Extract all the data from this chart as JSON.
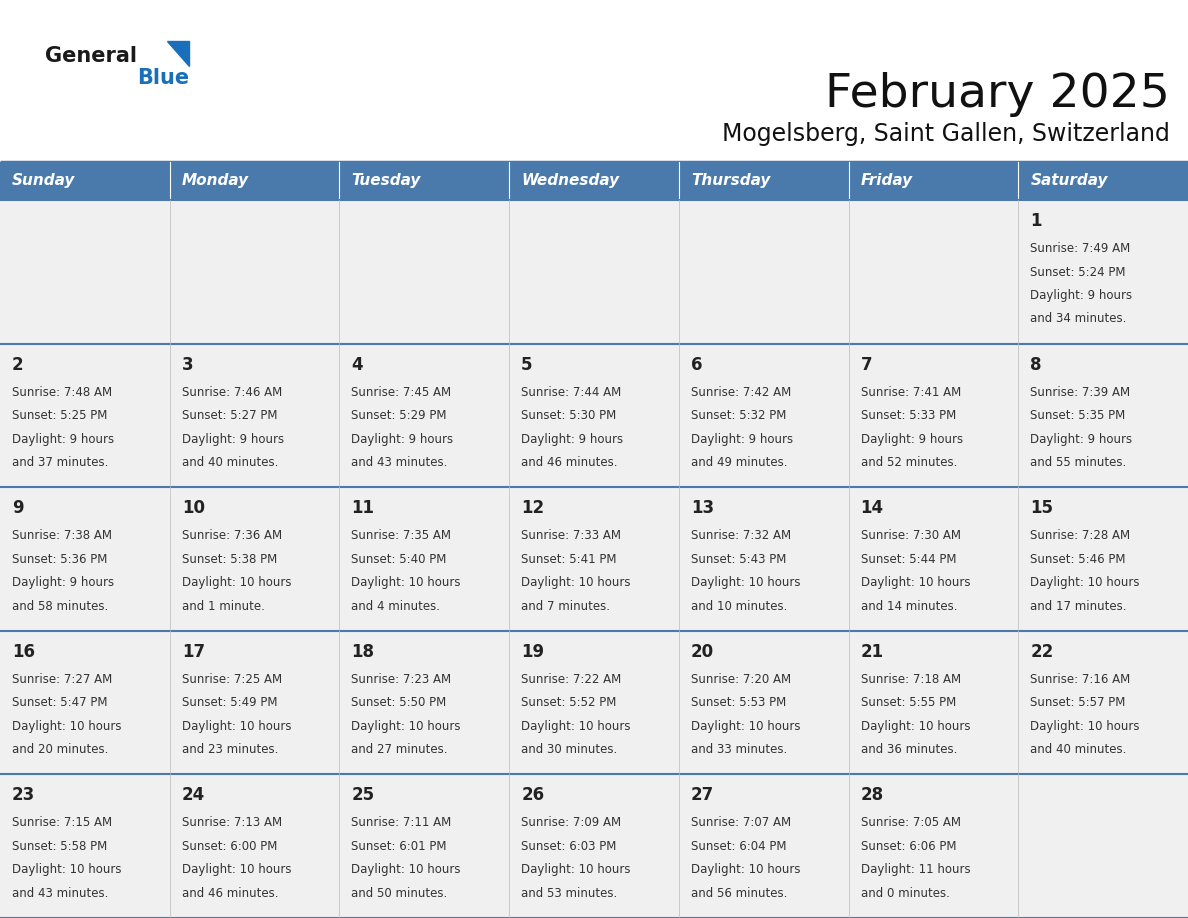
{
  "title": "February 2025",
  "subtitle": "Mogelsberg, Saint Gallen, Switzerland",
  "header_bg": "#4a7aac",
  "header_text": "#ffffff",
  "day_names": [
    "Sunday",
    "Monday",
    "Tuesday",
    "Wednesday",
    "Thursday",
    "Friday",
    "Saturday"
  ],
  "cell_bg": "#f0f0f0",
  "border_color": "#4a7aac",
  "day_num_color": "#222222",
  "info_color": "#333333",
  "logo_general_color": "#1a1a1a",
  "logo_blue_color": "#1a6fbc",
  "separator_color": "#4a7aac",
  "days": [
    {
      "day": 1,
      "col": 6,
      "row": 0,
      "sunrise": "7:49 AM",
      "sunset": "5:24 PM",
      "daylight_h": "9 hours",
      "daylight_m": "and 34 minutes."
    },
    {
      "day": 2,
      "col": 0,
      "row": 1,
      "sunrise": "7:48 AM",
      "sunset": "5:25 PM",
      "daylight_h": "9 hours",
      "daylight_m": "and 37 minutes."
    },
    {
      "day": 3,
      "col": 1,
      "row": 1,
      "sunrise": "7:46 AM",
      "sunset": "5:27 PM",
      "daylight_h": "9 hours",
      "daylight_m": "and 40 minutes."
    },
    {
      "day": 4,
      "col": 2,
      "row": 1,
      "sunrise": "7:45 AM",
      "sunset": "5:29 PM",
      "daylight_h": "9 hours",
      "daylight_m": "and 43 minutes."
    },
    {
      "day": 5,
      "col": 3,
      "row": 1,
      "sunrise": "7:44 AM",
      "sunset": "5:30 PM",
      "daylight_h": "9 hours",
      "daylight_m": "and 46 minutes."
    },
    {
      "day": 6,
      "col": 4,
      "row": 1,
      "sunrise": "7:42 AM",
      "sunset": "5:32 PM",
      "daylight_h": "9 hours",
      "daylight_m": "and 49 minutes."
    },
    {
      "day": 7,
      "col": 5,
      "row": 1,
      "sunrise": "7:41 AM",
      "sunset": "5:33 PM",
      "daylight_h": "9 hours",
      "daylight_m": "and 52 minutes."
    },
    {
      "day": 8,
      "col": 6,
      "row": 1,
      "sunrise": "7:39 AM",
      "sunset": "5:35 PM",
      "daylight_h": "9 hours",
      "daylight_m": "and 55 minutes."
    },
    {
      "day": 9,
      "col": 0,
      "row": 2,
      "sunrise": "7:38 AM",
      "sunset": "5:36 PM",
      "daylight_h": "9 hours",
      "daylight_m": "and 58 minutes."
    },
    {
      "day": 10,
      "col": 1,
      "row": 2,
      "sunrise": "7:36 AM",
      "sunset": "5:38 PM",
      "daylight_h": "10 hours",
      "daylight_m": "and 1 minute."
    },
    {
      "day": 11,
      "col": 2,
      "row": 2,
      "sunrise": "7:35 AM",
      "sunset": "5:40 PM",
      "daylight_h": "10 hours",
      "daylight_m": "and 4 minutes."
    },
    {
      "day": 12,
      "col": 3,
      "row": 2,
      "sunrise": "7:33 AM",
      "sunset": "5:41 PM",
      "daylight_h": "10 hours",
      "daylight_m": "and 7 minutes."
    },
    {
      "day": 13,
      "col": 4,
      "row": 2,
      "sunrise": "7:32 AM",
      "sunset": "5:43 PM",
      "daylight_h": "10 hours",
      "daylight_m": "and 10 minutes."
    },
    {
      "day": 14,
      "col": 5,
      "row": 2,
      "sunrise": "7:30 AM",
      "sunset": "5:44 PM",
      "daylight_h": "10 hours",
      "daylight_m": "and 14 minutes."
    },
    {
      "day": 15,
      "col": 6,
      "row": 2,
      "sunrise": "7:28 AM",
      "sunset": "5:46 PM",
      "daylight_h": "10 hours",
      "daylight_m": "and 17 minutes."
    },
    {
      "day": 16,
      "col": 0,
      "row": 3,
      "sunrise": "7:27 AM",
      "sunset": "5:47 PM",
      "daylight_h": "10 hours",
      "daylight_m": "and 20 minutes."
    },
    {
      "day": 17,
      "col": 1,
      "row": 3,
      "sunrise": "7:25 AM",
      "sunset": "5:49 PM",
      "daylight_h": "10 hours",
      "daylight_m": "and 23 minutes."
    },
    {
      "day": 18,
      "col": 2,
      "row": 3,
      "sunrise": "7:23 AM",
      "sunset": "5:50 PM",
      "daylight_h": "10 hours",
      "daylight_m": "and 27 minutes."
    },
    {
      "day": 19,
      "col": 3,
      "row": 3,
      "sunrise": "7:22 AM",
      "sunset": "5:52 PM",
      "daylight_h": "10 hours",
      "daylight_m": "and 30 minutes."
    },
    {
      "day": 20,
      "col": 4,
      "row": 3,
      "sunrise": "7:20 AM",
      "sunset": "5:53 PM",
      "daylight_h": "10 hours",
      "daylight_m": "and 33 minutes."
    },
    {
      "day": 21,
      "col": 5,
      "row": 3,
      "sunrise": "7:18 AM",
      "sunset": "5:55 PM",
      "daylight_h": "10 hours",
      "daylight_m": "and 36 minutes."
    },
    {
      "day": 22,
      "col": 6,
      "row": 3,
      "sunrise": "7:16 AM",
      "sunset": "5:57 PM",
      "daylight_h": "10 hours",
      "daylight_m": "and 40 minutes."
    },
    {
      "day": 23,
      "col": 0,
      "row": 4,
      "sunrise": "7:15 AM",
      "sunset": "5:58 PM",
      "daylight_h": "10 hours",
      "daylight_m": "and 43 minutes."
    },
    {
      "day": 24,
      "col": 1,
      "row": 4,
      "sunrise": "7:13 AM",
      "sunset": "6:00 PM",
      "daylight_h": "10 hours",
      "daylight_m": "and 46 minutes."
    },
    {
      "day": 25,
      "col": 2,
      "row": 4,
      "sunrise": "7:11 AM",
      "sunset": "6:01 PM",
      "daylight_h": "10 hours",
      "daylight_m": "and 50 minutes."
    },
    {
      "day": 26,
      "col": 3,
      "row": 4,
      "sunrise": "7:09 AM",
      "sunset": "6:03 PM",
      "daylight_h": "10 hours",
      "daylight_m": "and 53 minutes."
    },
    {
      "day": 27,
      "col": 4,
      "row": 4,
      "sunrise": "7:07 AM",
      "sunset": "6:04 PM",
      "daylight_h": "10 hours",
      "daylight_m": "and 56 minutes."
    },
    {
      "day": 28,
      "col": 5,
      "row": 4,
      "sunrise": "7:05 AM",
      "sunset": "6:06 PM",
      "daylight_h": "11 hours",
      "daylight_m": "and 0 minutes."
    }
  ]
}
